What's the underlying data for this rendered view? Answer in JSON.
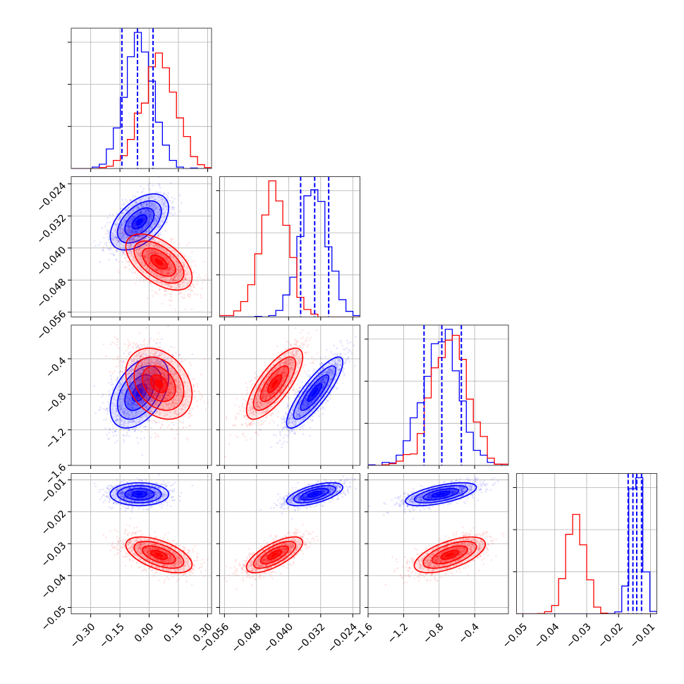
{
  "colors": {
    "blue": "#0000ff",
    "red": "#ff0000",
    "grid": "#b0b0b0",
    "frame": "#444444"
  },
  "params": [
    {
      "range": [
        -0.4,
        0.32
      ],
      "ticks": [
        -0.3,
        -0.15,
        0.0,
        0.15,
        0.3
      ],
      "tick_labels": [
        "−0.30",
        "−0.15",
        "0.00",
        "0.15",
        "0.30"
      ]
    },
    {
      "range": [
        -0.0572,
        -0.0222
      ],
      "ticks": [
        -0.056,
        -0.048,
        -0.04,
        -0.032,
        -0.024
      ],
      "tick_labels": [
        "−0.056",
        "−0.048",
        "−0.040",
        "−0.032",
        "−0.024"
      ]
    },
    {
      "range": [
        -1.6,
        -0.02
      ],
      "ticks": [
        -1.6,
        -1.2,
        -0.8,
        -0.4
      ],
      "tick_labels": [
        "−1.6",
        "−1.2",
        "−0.8",
        "−0.4"
      ]
    },
    {
      "range": [
        -0.052,
        -0.008
      ],
      "ticks": [
        -0.05,
        -0.04,
        -0.03,
        -0.02,
        -0.01
      ],
      "tick_labels": [
        "−0.05",
        "−0.04",
        "−0.03",
        "−0.02",
        "−0.01"
      ]
    }
  ],
  "chart_data": {
    "type": "corner",
    "grid": true,
    "series": [
      {
        "color": "#0000ff",
        "mean": [
          -0.05,
          -0.0335,
          -0.78,
          -0.0145
        ],
        "sd": [
          0.075,
          0.0035,
          0.2,
          0.0018
        ],
        "corr": [
          [
            1,
            0.5,
            0.45,
            0.0
          ],
          [
            0.5,
            1,
            0.85,
            0.6
          ],
          [
            0.45,
            0.85,
            1,
            0.6
          ],
          [
            0.0,
            0.6,
            0.6,
            1
          ]
        ],
        "quantile_lines": [
          [
            -0.14,
            -0.06,
            0.02
          ],
          [
            -0.037,
            -0.0335,
            -0.03
          ],
          [
            -0.97,
            -0.77,
            -0.55
          ],
          [
            -0.017,
            -0.0155,
            -0.0143,
            -0.0128
          ]
        ]
      },
      {
        "color": "#ff0000",
        "mean": [
          0.05,
          -0.0435,
          -0.68,
          -0.0335
        ],
        "sd": [
          0.085,
          0.0035,
          0.2,
          0.0028
        ],
        "corr": [
          [
            1,
            -0.55,
            -0.3,
            -0.55
          ],
          [
            -0.55,
            1,
            0.75,
            0.7
          ],
          [
            -0.3,
            0.75,
            1,
            0.6
          ],
          [
            -0.55,
            0.7,
            0.6,
            1
          ]
        ],
        "quantile_lines": []
      }
    ]
  }
}
